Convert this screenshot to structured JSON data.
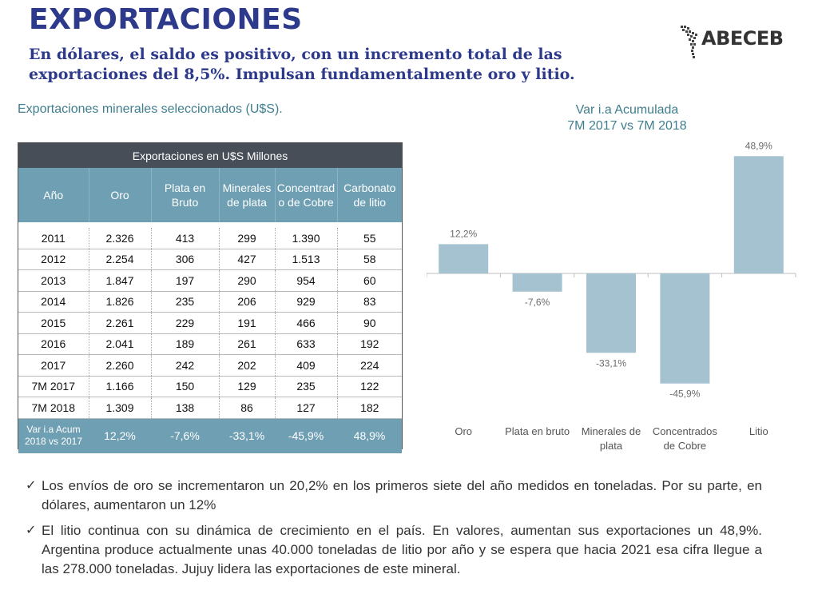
{
  "header": {
    "title": "EXPORTACIONES",
    "subtitle": "En dólares, el saldo es positivo, con un incremento total de las exportaciones del 8,5%. Impulsan fundamentalmente oro y litio.",
    "logo_text": "ABECEB"
  },
  "table_section": {
    "label": "Exportaciones minerales seleccionados (U$S).",
    "caption": "Exportaciones en U$S Millones",
    "columns": [
      "Año",
      "Oro",
      "Plata en Bruto",
      "Minerales de plata",
      "Concentrad o de Cobre",
      "Carbonato de litio"
    ],
    "rows": [
      [
        "2011",
        "2.326",
        "413",
        "299",
        "1.390",
        "55"
      ],
      [
        "2012",
        "2.254",
        "306",
        "427",
        "1.513",
        "58"
      ],
      [
        "2013",
        "1.847",
        "197",
        "290",
        "954",
        "60"
      ],
      [
        "2014",
        "1.826",
        "235",
        "206",
        "929",
        "83"
      ],
      [
        "2015",
        "2.261",
        "229",
        "191",
        "466",
        "90"
      ],
      [
        "2016",
        "2.041",
        "189",
        "261",
        "633",
        "192"
      ],
      [
        "2017",
        "2.260",
        "242",
        "202",
        "409",
        "224"
      ],
      [
        "7M 2017",
        "1.166",
        "150",
        "129",
        "235",
        "122"
      ],
      [
        "7M 2018",
        "1.309",
        "138",
        "86",
        "127",
        "182"
      ]
    ],
    "var_row": {
      "label": "Var i.a Acum 2018 vs 2017",
      "values": [
        "12,2%",
        "-7,6%",
        "-33,1%",
        "-45,9%",
        "48,9%"
      ]
    }
  },
  "chart_data": {
    "type": "bar",
    "title": "Var i.a Acumulada 7M 2017 vs 7M 2018",
    "title_lines": [
      "Var i.a Acumulada",
      "7M 2017 vs 7M 2018"
    ],
    "categories": [
      "Oro",
      "Plata en bruto",
      "Minerales de plata",
      "Concentrados de Cobre",
      "Litio"
    ],
    "category_lines": [
      [
        "Oro"
      ],
      [
        "Plata en bruto"
      ],
      [
        "Minerales de",
        "plata"
      ],
      [
        "Concentrados",
        "de Cobre"
      ],
      [
        "Litio"
      ]
    ],
    "values": [
      12.2,
      -7.6,
      -33.1,
      -45.9,
      48.9
    ],
    "data_labels": [
      "12,2%",
      "-7,6%",
      "-33,1%",
      "-45,9%",
      "48,9%"
    ],
    "unit": "%",
    "grid": false,
    "bar_color": "#a4c2cf",
    "axis_color": "#bfbfbf"
  },
  "bullets": [
    "Los envíos de oro se incrementaron un 20,2% en los primeros siete del año medidos en toneladas. Por su parte, en dólares, aumentaron un 12%",
    "El litio continua con su dinámica de crecimiento en el país. En valores, aumentan sus exportaciones un 48,9%. Argentina produce actualmente unas 40.000 toneladas de litio por año y se espera que hacia 2021 esa cifra llegue a las 278.000 toneladas. Jujuy lidera las exportaciones de este mineral."
  ],
  "colors": {
    "title": "#2d3a8c",
    "accent": "#3f7e8e",
    "table_header_dark": "#474e57",
    "table_header": "#6f9fb3"
  }
}
